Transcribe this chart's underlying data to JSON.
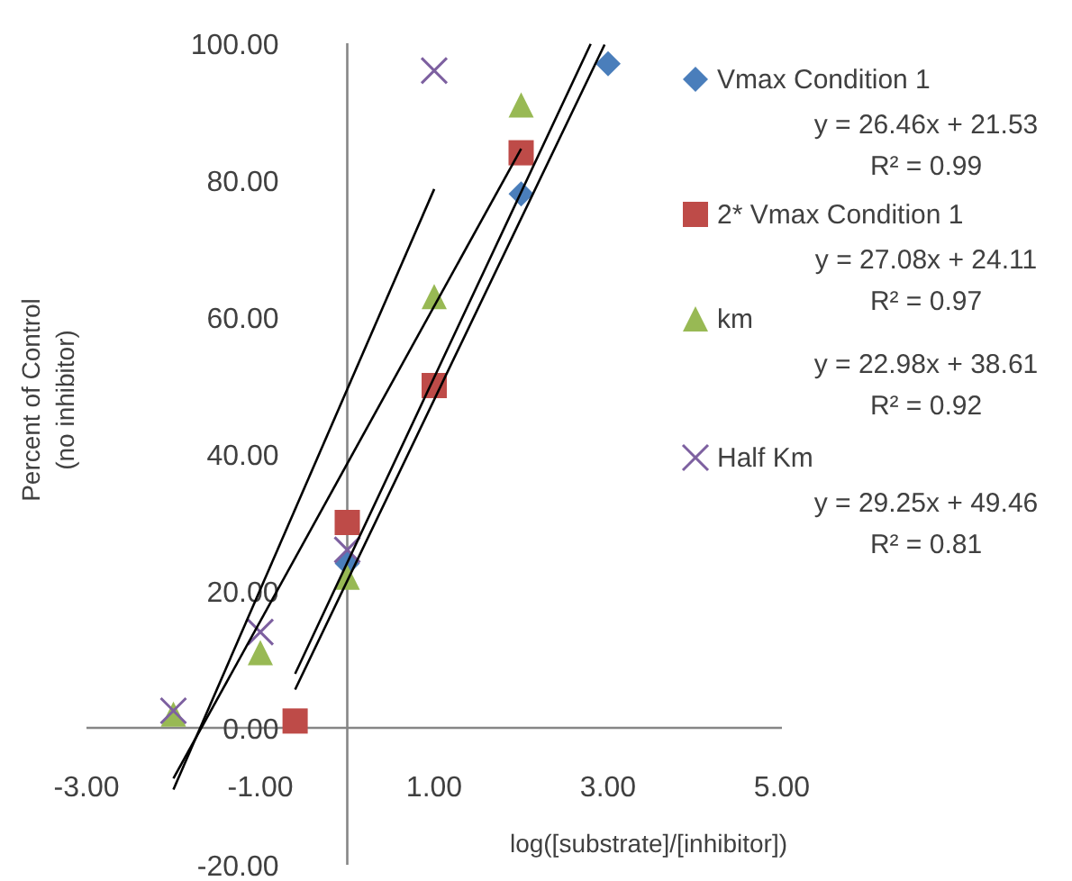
{
  "chart_data": {
    "type": "scatter",
    "xlabel": "log([substrate]/[inhibitor])",
    "ylabel": "Percent of Control\n(no inhibitor)",
    "xlim": [
      -3,
      5
    ],
    "xticks": [
      {
        "value": -3,
        "label": "-3.00"
      },
      {
        "value": -1,
        "label": "-1.00"
      },
      {
        "value": 1,
        "label": "1.00"
      },
      {
        "value": 3,
        "label": "3.00"
      },
      {
        "value": 5,
        "label": "5.00"
      }
    ],
    "ylim": [
      -20,
      100
    ],
    "yticks": [
      {
        "value": -20,
        "label": "-20.00"
      },
      {
        "value": 0,
        "label": "0.00"
      },
      {
        "value": 20,
        "label": "20.00"
      },
      {
        "value": 40,
        "label": "40.00"
      },
      {
        "value": 60,
        "label": "60.00"
      },
      {
        "value": 80,
        "label": "80.00"
      },
      {
        "value": 100,
        "label": "100.00"
      }
    ],
    "grid": false,
    "legend": "right",
    "series": [
      {
        "name": "Vmax Condition 1",
        "color": "#4a7ebb",
        "marker": "diamond",
        "x": [
          0,
          2,
          3
        ],
        "values": [
          24,
          78,
          97
        ]
      },
      {
        "name": "2* Vmax Condition 1",
        "color": "#be4b48",
        "marker": "square",
        "x": [
          -0.6,
          0,
          1,
          2
        ],
        "values": [
          1,
          30,
          50,
          84
        ]
      },
      {
        "name": "km",
        "color": "#98b954",
        "marker": "triangle",
        "x": [
          -2,
          -1,
          0,
          1,
          2
        ],
        "values": [
          2,
          11,
          22,
          63,
          91
        ]
      },
      {
        "name": "Half Km",
        "color": "#7d60a0",
        "marker": "cross",
        "x": [
          -2,
          -1,
          0,
          1
        ],
        "values": [
          2.5,
          14,
          26,
          96
        ]
      },
      {
        "type": "line",
        "color": "#000000",
        "x": [
          -0.6,
          2.96
        ],
        "values": [
          5.6,
          99.8
        ]
      },
      {
        "type": "line",
        "color": "#000000",
        "x": [
          -0.6,
          2.8
        ],
        "values": [
          7.9,
          99.9
        ]
      },
      {
        "type": "line",
        "color": "#000000",
        "x": [
          -2,
          2
        ],
        "values": [
          -7.4,
          84.6
        ]
      },
      {
        "type": "line",
        "color": "#000000",
        "x": [
          -2,
          1
        ],
        "values": [
          -9.0,
          78.7
        ]
      }
    ],
    "annotations": [
      "y = 26.46x + 21.53\nR² = 0.99",
      "y = 27.08x + 24.11\nR² = 0.97",
      "y = 22.98x + 38.61\nR² = 0.92",
      "y = 29.25x + 49.46\nR² = 0.81"
    ]
  }
}
